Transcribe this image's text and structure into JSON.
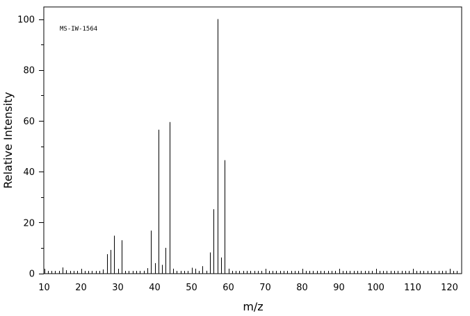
{
  "chart_data": {
    "type": "bar",
    "annotation": "MS-IW-1564",
    "xlabel": "m/z",
    "ylabel": "Relative Intensity",
    "xlim": [
      10,
      122
    ],
    "ylim": [
      0,
      105
    ],
    "x_ticks": [
      10,
      20,
      30,
      40,
      50,
      60,
      70,
      80,
      90,
      100,
      110,
      120
    ],
    "y_ticks": [
      0,
      20,
      40,
      60,
      80,
      100
    ],
    "grid": false,
    "peaks": [
      {
        "mz": 15,
        "intensity": 2.3
      },
      {
        "mz": 16,
        "intensity": 1.2
      },
      {
        "mz": 18,
        "intensity": 0.6
      },
      {
        "mz": 22,
        "intensity": 0.5
      },
      {
        "mz": 26,
        "intensity": 1.5
      },
      {
        "mz": 27,
        "intensity": 7.5
      },
      {
        "mz": 28,
        "intensity": 9.2
      },
      {
        "mz": 29,
        "intensity": 14.8
      },
      {
        "mz": 31,
        "intensity": 13.0
      },
      {
        "mz": 37,
        "intensity": 1.0
      },
      {
        "mz": 38,
        "intensity": 2.0
      },
      {
        "mz": 39,
        "intensity": 16.8
      },
      {
        "mz": 40,
        "intensity": 4.0
      },
      {
        "mz": 41,
        "intensity": 56.5
      },
      {
        "mz": 42,
        "intensity": 3.3
      },
      {
        "mz": 43,
        "intensity": 10.0
      },
      {
        "mz": 44,
        "intensity": 59.5
      },
      {
        "mz": 45,
        "intensity": 1.8
      },
      {
        "mz": 50,
        "intensity": 2.2
      },
      {
        "mz": 51,
        "intensity": 1.8
      },
      {
        "mz": 53,
        "intensity": 2.8
      },
      {
        "mz": 54,
        "intensity": 1.0
      },
      {
        "mz": 55,
        "intensity": 8.2
      },
      {
        "mz": 56,
        "intensity": 25.2
      },
      {
        "mz": 57,
        "intensity": 100.0
      },
      {
        "mz": 58,
        "intensity": 6.2
      },
      {
        "mz": 59,
        "intensity": 44.5
      },
      {
        "mz": 60,
        "intensity": 1.8
      },
      {
        "mz": 119,
        "intensity": 1.0
      }
    ]
  }
}
